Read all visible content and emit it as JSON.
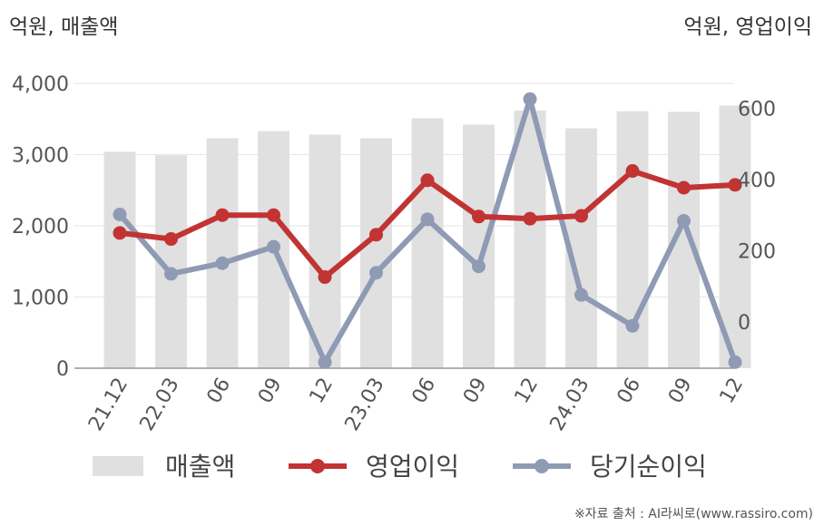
{
  "chart_data": {
    "type": "bar",
    "categories": [
      "21.12",
      "22.03",
      "06",
      "09",
      "12",
      "23.03",
      "06",
      "09",
      "12",
      "24.03",
      "06",
      "09",
      "12"
    ],
    "y_left_label": "억원, 매출액",
    "y_right_label": "억원, 영업이익",
    "y_left_ticks": [
      "0",
      "1,000",
      "2,000",
      "3,000",
      "4,000"
    ],
    "y_right_ticks": [
      "0",
      "200",
      "400",
      "600"
    ],
    "ylim_left": [
      0,
      4000
    ],
    "ylim_right": [
      -130,
      670
    ],
    "series": [
      {
        "name": "매출액",
        "type": "bar",
        "axis": "left",
        "color": "#e0e0e0",
        "values": [
          3040,
          2990,
          3230,
          3330,
          3280,
          3230,
          3510,
          3420,
          3620,
          3370,
          3610,
          3600,
          3690
        ]
      },
      {
        "name": "영업이익",
        "type": "line",
        "axis": "right",
        "color": "#c23333",
        "values": [
          250,
          233,
          300,
          300,
          126,
          245,
          398,
          296,
          290,
          298,
          424,
          377,
          385
        ]
      },
      {
        "name": "당기순이익",
        "type": "line",
        "axis": "right",
        "color": "#8f9bb5",
        "values": [
          302,
          135,
          165,
          211,
          -113,
          138,
          288,
          156,
          626,
          76,
          -11,
          284,
          -113
        ]
      }
    ],
    "grid": true,
    "legend_position": "bottom"
  },
  "source": "※자료 출처 : AI라씨로(www.rassiro.com)"
}
